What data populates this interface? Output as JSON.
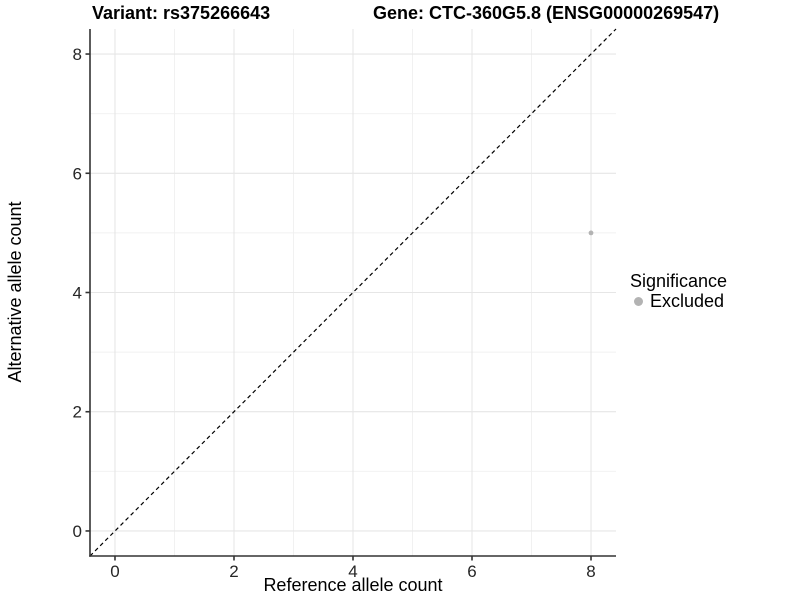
{
  "chart_data": {
    "type": "scatter",
    "title_left": "Variant: rs375266643",
    "title_right": "Gene: CTC-360G5.8 (ENSG00000269547)",
    "xlabel": "Reference allele count",
    "ylabel": "Alternative allele count",
    "xlim": [
      -0.42,
      8.42
    ],
    "ylim": [
      -0.42,
      8.42
    ],
    "xticks": [
      0,
      2,
      4,
      6,
      8
    ],
    "yticks": [
      0,
      2,
      4,
      6,
      8
    ],
    "xticks_minor": [
      1,
      3,
      5,
      7
    ],
    "yticks_minor": [
      1,
      3,
      5,
      7
    ],
    "grid": {
      "on": true,
      "major_color": "#e6e6e6",
      "minor_color": "#f0f0f0"
    },
    "panel_background": "#ffffff",
    "axis_color": "#333333",
    "identity_line": {
      "type": "y=x",
      "style": "dashed",
      "color": "#000000",
      "from": [
        -0.42,
        -0.42
      ],
      "to": [
        8.42,
        8.42
      ]
    },
    "series": [
      {
        "name": "Excluded",
        "color": "#b3b3b3",
        "marker": "circle",
        "marker_radius": 2.4,
        "points": [
          [
            8,
            5
          ]
        ]
      }
    ],
    "legend": {
      "title": "Significance",
      "position": "right",
      "items": [
        {
          "label": "Excluded",
          "color": "#b3b3b3"
        }
      ]
    }
  }
}
